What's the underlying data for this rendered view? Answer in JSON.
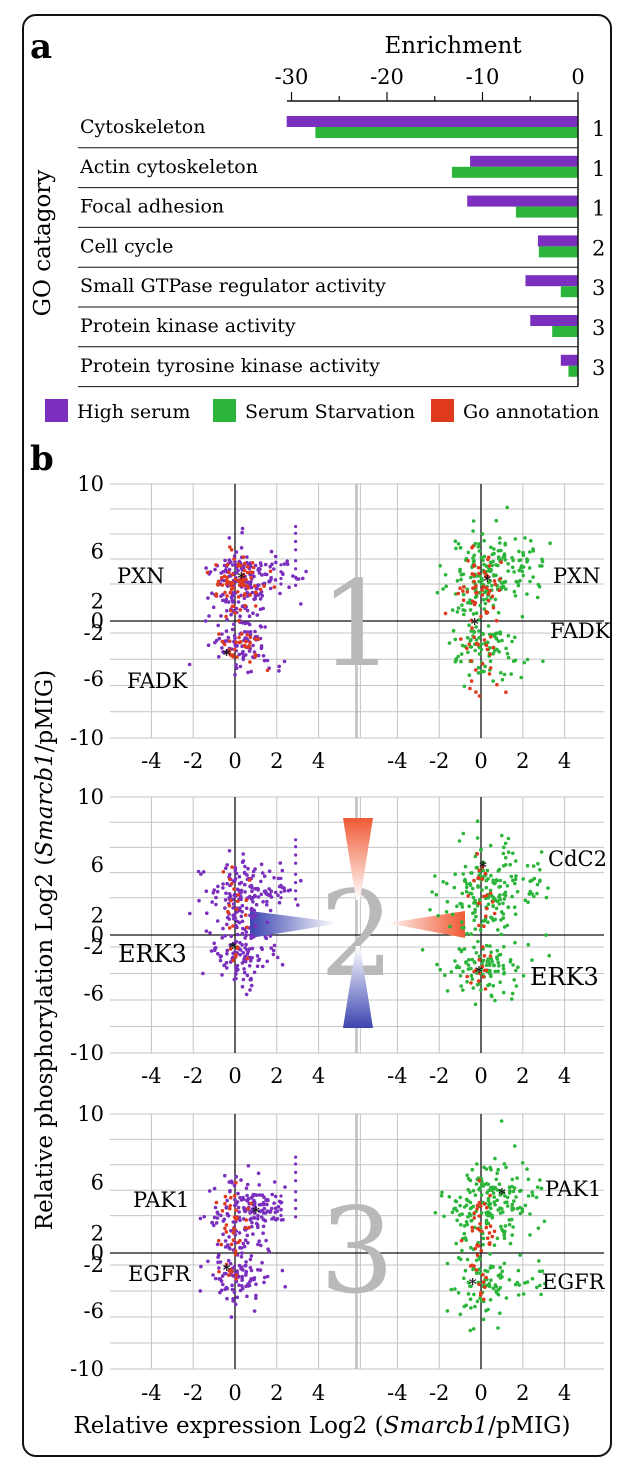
{
  "panel_a": {
    "letter": "a",
    "axis_title": "Enrichment",
    "y_title": "GO catagory",
    "ticks": [
      "-30",
      "-20",
      "-10",
      "0"
    ],
    "tick_values": [
      -30,
      -20,
      -10,
      0
    ],
    "legend": [
      {
        "label": "High serum",
        "color": "#7b2fbe"
      },
      {
        "label": "Serum Starvation",
        "color": "#2bb53a"
      },
      {
        "label": "Go annotation",
        "color": "#e03a1e"
      }
    ]
  },
  "panel_b": {
    "letter": "b",
    "y_title_prefix": "Relative phosphorylation Log2 (",
    "y_title_gene": "Smarcb1",
    "y_title_suffix": "/pMIG)",
    "x_title_prefix": "Relative expression Log2 (",
    "x_title_gene": "Smarcb1",
    "x_title_suffix": "/pMIG)",
    "y_ticks": [
      "10",
      "6",
      "2",
      "0",
      "-2",
      "-6",
      "-10"
    ],
    "y_tick_values": [
      10,
      6,
      2,
      0,
      -2,
      -6,
      -10
    ],
    "x_ticks": [
      "-4",
      "-2",
      "0",
      "2",
      "4"
    ],
    "x_tick_values": [
      -4,
      -2,
      0,
      2,
      4
    ],
    "rows": [
      {
        "number": "1",
        "left_top": "PXN",
        "left_bottom": "FADK",
        "right_top": "PXN",
        "right_bottom": "FADK"
      },
      {
        "number": "2",
        "left_top": "",
        "left_bottom": "ERK3",
        "right_top": "CdC2",
        "right_bottom": "ERK3"
      },
      {
        "number": "3",
        "left_top": "PAK1",
        "left_bottom": "EGFR",
        "right_top": "PAK1",
        "right_bottom": "EGFR"
      }
    ]
  },
  "chart_data": [
    {
      "type": "bar",
      "orientation": "horizontal",
      "xlabel": "Enrichment",
      "ylabel": "GO catagory",
      "xlim": [
        -33,
        0
      ],
      "categories": [
        "Cytoskeleton",
        "Actin cytoskeleton",
        "Focal adhesion",
        "Cell cycle",
        "Small GTPase regulator activity",
        "Protein kinase activity",
        "Protein tyrosine kinase activity"
      ],
      "cluster": [
        "1",
        "1",
        "1",
        "2",
        "3",
        "3",
        "3"
      ],
      "series": [
        {
          "name": "High serum",
          "color": "#7b2fbe",
          "values": [
            -30.5,
            -11.3,
            -11.6,
            -4.2,
            -5.5,
            -5.0,
            -1.8
          ]
        },
        {
          "name": "Serum Starvation",
          "color": "#2bb53a",
          "values": [
            -27.5,
            -13.2,
            -6.5,
            -4.1,
            -1.8,
            -2.7,
            -1.0
          ]
        }
      ]
    },
    {
      "type": "scatter",
      "xlabel": "Relative expression Log2 (Smarcb1/pMIG)",
      "ylabel": "Relative phosphorylation Log2 (Smarcb1/pMIG)",
      "xlim": [
        -6,
        6
      ],
      "ylim": [
        -10,
        10
      ],
      "series": [
        {
          "name": "High serum",
          "color": "#7b2fbe",
          "values": []
        },
        {
          "name": "Serum Starvation",
          "color": "#2bb53a",
          "values": []
        },
        {
          "name": "Go annotation",
          "color": "#e03a1e",
          "values": []
        }
      ],
      "highlighted_points": [
        {
          "cluster": "1",
          "condition": "High serum",
          "label": "PXN",
          "x": 0.3,
          "y": 3.2
        },
        {
          "cluster": "1",
          "condition": "High serum",
          "label": "FADK",
          "x": -0.4,
          "y": -3.6
        },
        {
          "cluster": "1",
          "condition": "Serum Starvation",
          "label": "PXN",
          "x": 0.3,
          "y": 3.0
        },
        {
          "cluster": "1",
          "condition": "Serum Starvation",
          "label": "FADK",
          "x": -0.3,
          "y": -1.6
        },
        {
          "cluster": "2",
          "condition": "High serum",
          "label": "ERK3",
          "x": -0.1,
          "y": -2.0
        },
        {
          "cluster": "2",
          "condition": "Serum Starvation",
          "label": "CdC2",
          "x": 0.1,
          "y": 5.0
        },
        {
          "cluster": "2",
          "condition": "Serum Starvation",
          "label": "ERK3",
          "x": -0.1,
          "y": -3.8
        },
        {
          "cluster": "3",
          "condition": "High serum",
          "label": "PAK1",
          "x": 1.0,
          "y": 3.0
        },
        {
          "cluster": "3",
          "condition": "High serum",
          "label": "EGFR",
          "x": -0.4,
          "y": -2.3
        },
        {
          "cluster": "3",
          "condition": "Serum Starvation",
          "label": "PAK1",
          "x": 1.0,
          "y": 4.3
        },
        {
          "cluster": "3",
          "condition": "Serum Starvation",
          "label": "EGFR",
          "x": -0.4,
          "y": -3.4
        }
      ]
    }
  ]
}
